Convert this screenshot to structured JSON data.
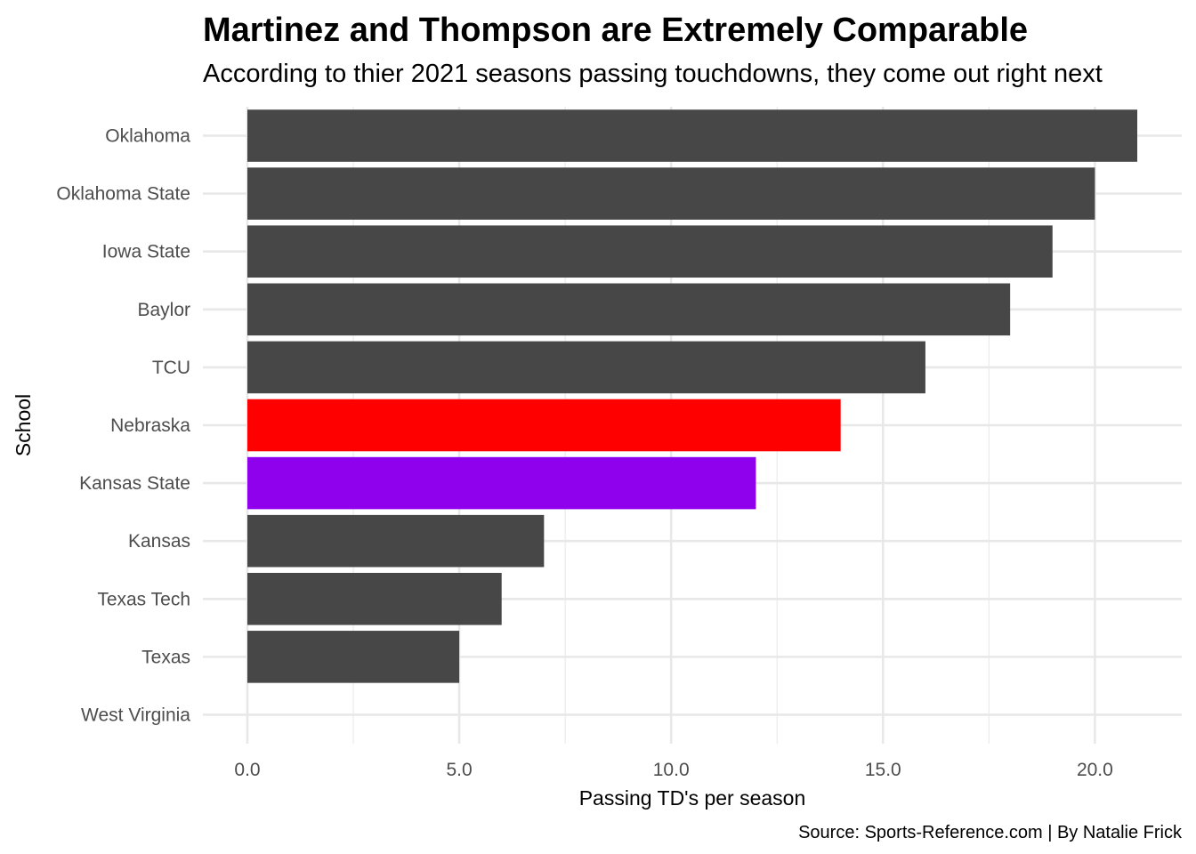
{
  "chart_data": {
    "type": "bar",
    "orientation": "horizontal",
    "title": "Martinez and Thompson are Extremely Comparable",
    "subtitle": "According to thier 2021 seasons passing touchdowns, they come out right next",
    "xlabel": "Passing TD's per season",
    "ylabel": "School",
    "caption": "Source: Sports-Reference.com | By Natalie Frick",
    "categories": [
      "Oklahoma",
      "Oklahoma State",
      "Iowa State",
      "Baylor",
      "TCU",
      "Nebraska",
      "Kansas State",
      "Kansas",
      "Texas Tech",
      "Texas",
      "West Virginia"
    ],
    "values": [
      21,
      20,
      19,
      18,
      16,
      14,
      12,
      7,
      6,
      5,
      0
    ],
    "bar_colors": [
      "#474747",
      "#474747",
      "#474747",
      "#474747",
      "#474747",
      "#ff0000",
      "#8f00ed",
      "#474747",
      "#474747",
      "#474747",
      "#474747"
    ],
    "xlim": [
      -1.05,
      22.05
    ],
    "x_ticks": [
      0,
      5,
      10,
      15,
      20
    ],
    "x_tick_labels": [
      "0.0",
      "5.0",
      "10.0",
      "15.0",
      "20.0"
    ],
    "grid": true,
    "legend": "none"
  }
}
